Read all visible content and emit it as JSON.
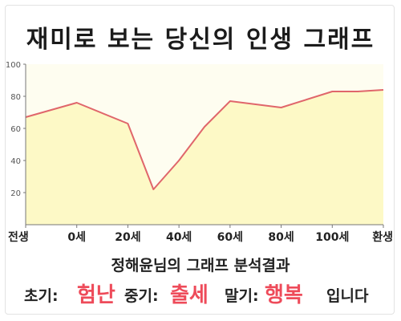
{
  "title": "재미로 보는 당신의 인생 그래프",
  "subtitle": "정해윤님의 그래프 분석결과",
  "result": {
    "early_label": "초기:",
    "early_value": "험난",
    "mid_label": "중기:",
    "mid_value": "출세",
    "late_label": "말기:",
    "late_value": "행복",
    "ending": "입니다"
  },
  "colors": {
    "line": "#e0666b",
    "fill": "#fdf9c6",
    "plot_bg": "#fefdf0",
    "accent": "#ee4b5a"
  },
  "chart_data": {
    "type": "area",
    "title": "재미로 보는 당신의 인생 그래프",
    "xlabel": "",
    "ylabel": "",
    "categories": [
      "전생",
      "0세",
      "20세",
      "40세",
      "60세",
      "80세",
      "100세",
      "환생"
    ],
    "x": [
      -20,
      0,
      20,
      30,
      40,
      50,
      60,
      80,
      100,
      110,
      120
    ],
    "values": [
      67,
      76,
      63,
      22,
      40,
      61,
      77,
      73,
      83,
      83,
      84
    ],
    "yticks": [
      20,
      40,
      60,
      80,
      100
    ],
    "ylim": [
      0,
      100
    ],
    "xlim": [
      -20,
      120
    ],
    "grid": false,
    "legend": "none"
  }
}
